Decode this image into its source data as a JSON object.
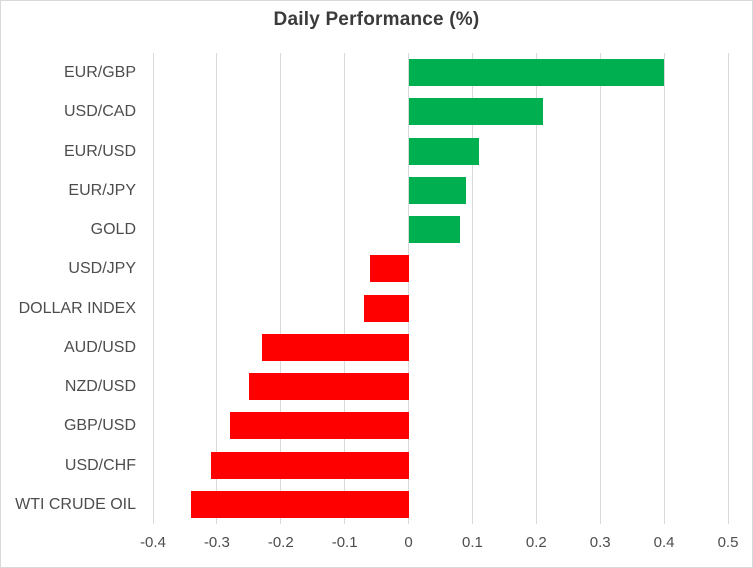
{
  "title": "Daily Performance (%)",
  "colors": {
    "positive_bar": "#00B050",
    "negative_bar": "#FF0000",
    "gridline": "#D9D9D9",
    "frame_border": "#D9D9D9",
    "title_text": "#3B3B3B",
    "label_text": "#4D4D4D",
    "background": "#FFFFFF"
  },
  "chart_data": {
    "type": "bar",
    "orientation": "horizontal",
    "title": "Daily Performance (%)",
    "xlabel": "",
    "ylabel": "",
    "categories": [
      "EUR/GBP",
      "USD/CAD",
      "EUR/USD",
      "EUR/JPY",
      "GOLD",
      "USD/JPY",
      "DOLLAR INDEX",
      "AUD/USD",
      "NZD/USD",
      "GBP/USD",
      "USD/CHF",
      "WTI CRUDE OIL"
    ],
    "values": [
      0.4,
      0.21,
      0.11,
      0.09,
      0.08,
      -0.06,
      -0.07,
      -0.23,
      -0.25,
      -0.28,
      -0.31,
      -0.34
    ],
    "xlim": [
      -0.4,
      0.5
    ],
    "xticks": [
      -0.4,
      -0.3,
      -0.2,
      -0.1,
      0,
      0.1,
      0.2,
      0.3,
      0.4,
      0.5
    ],
    "xtick_labels": [
      "-0.4",
      "-0.3",
      "-0.2",
      "-0.1",
      "0",
      "0.1",
      "0.2",
      "0.3",
      "0.4",
      "0.5"
    ],
    "grid": true,
    "legend": false
  }
}
